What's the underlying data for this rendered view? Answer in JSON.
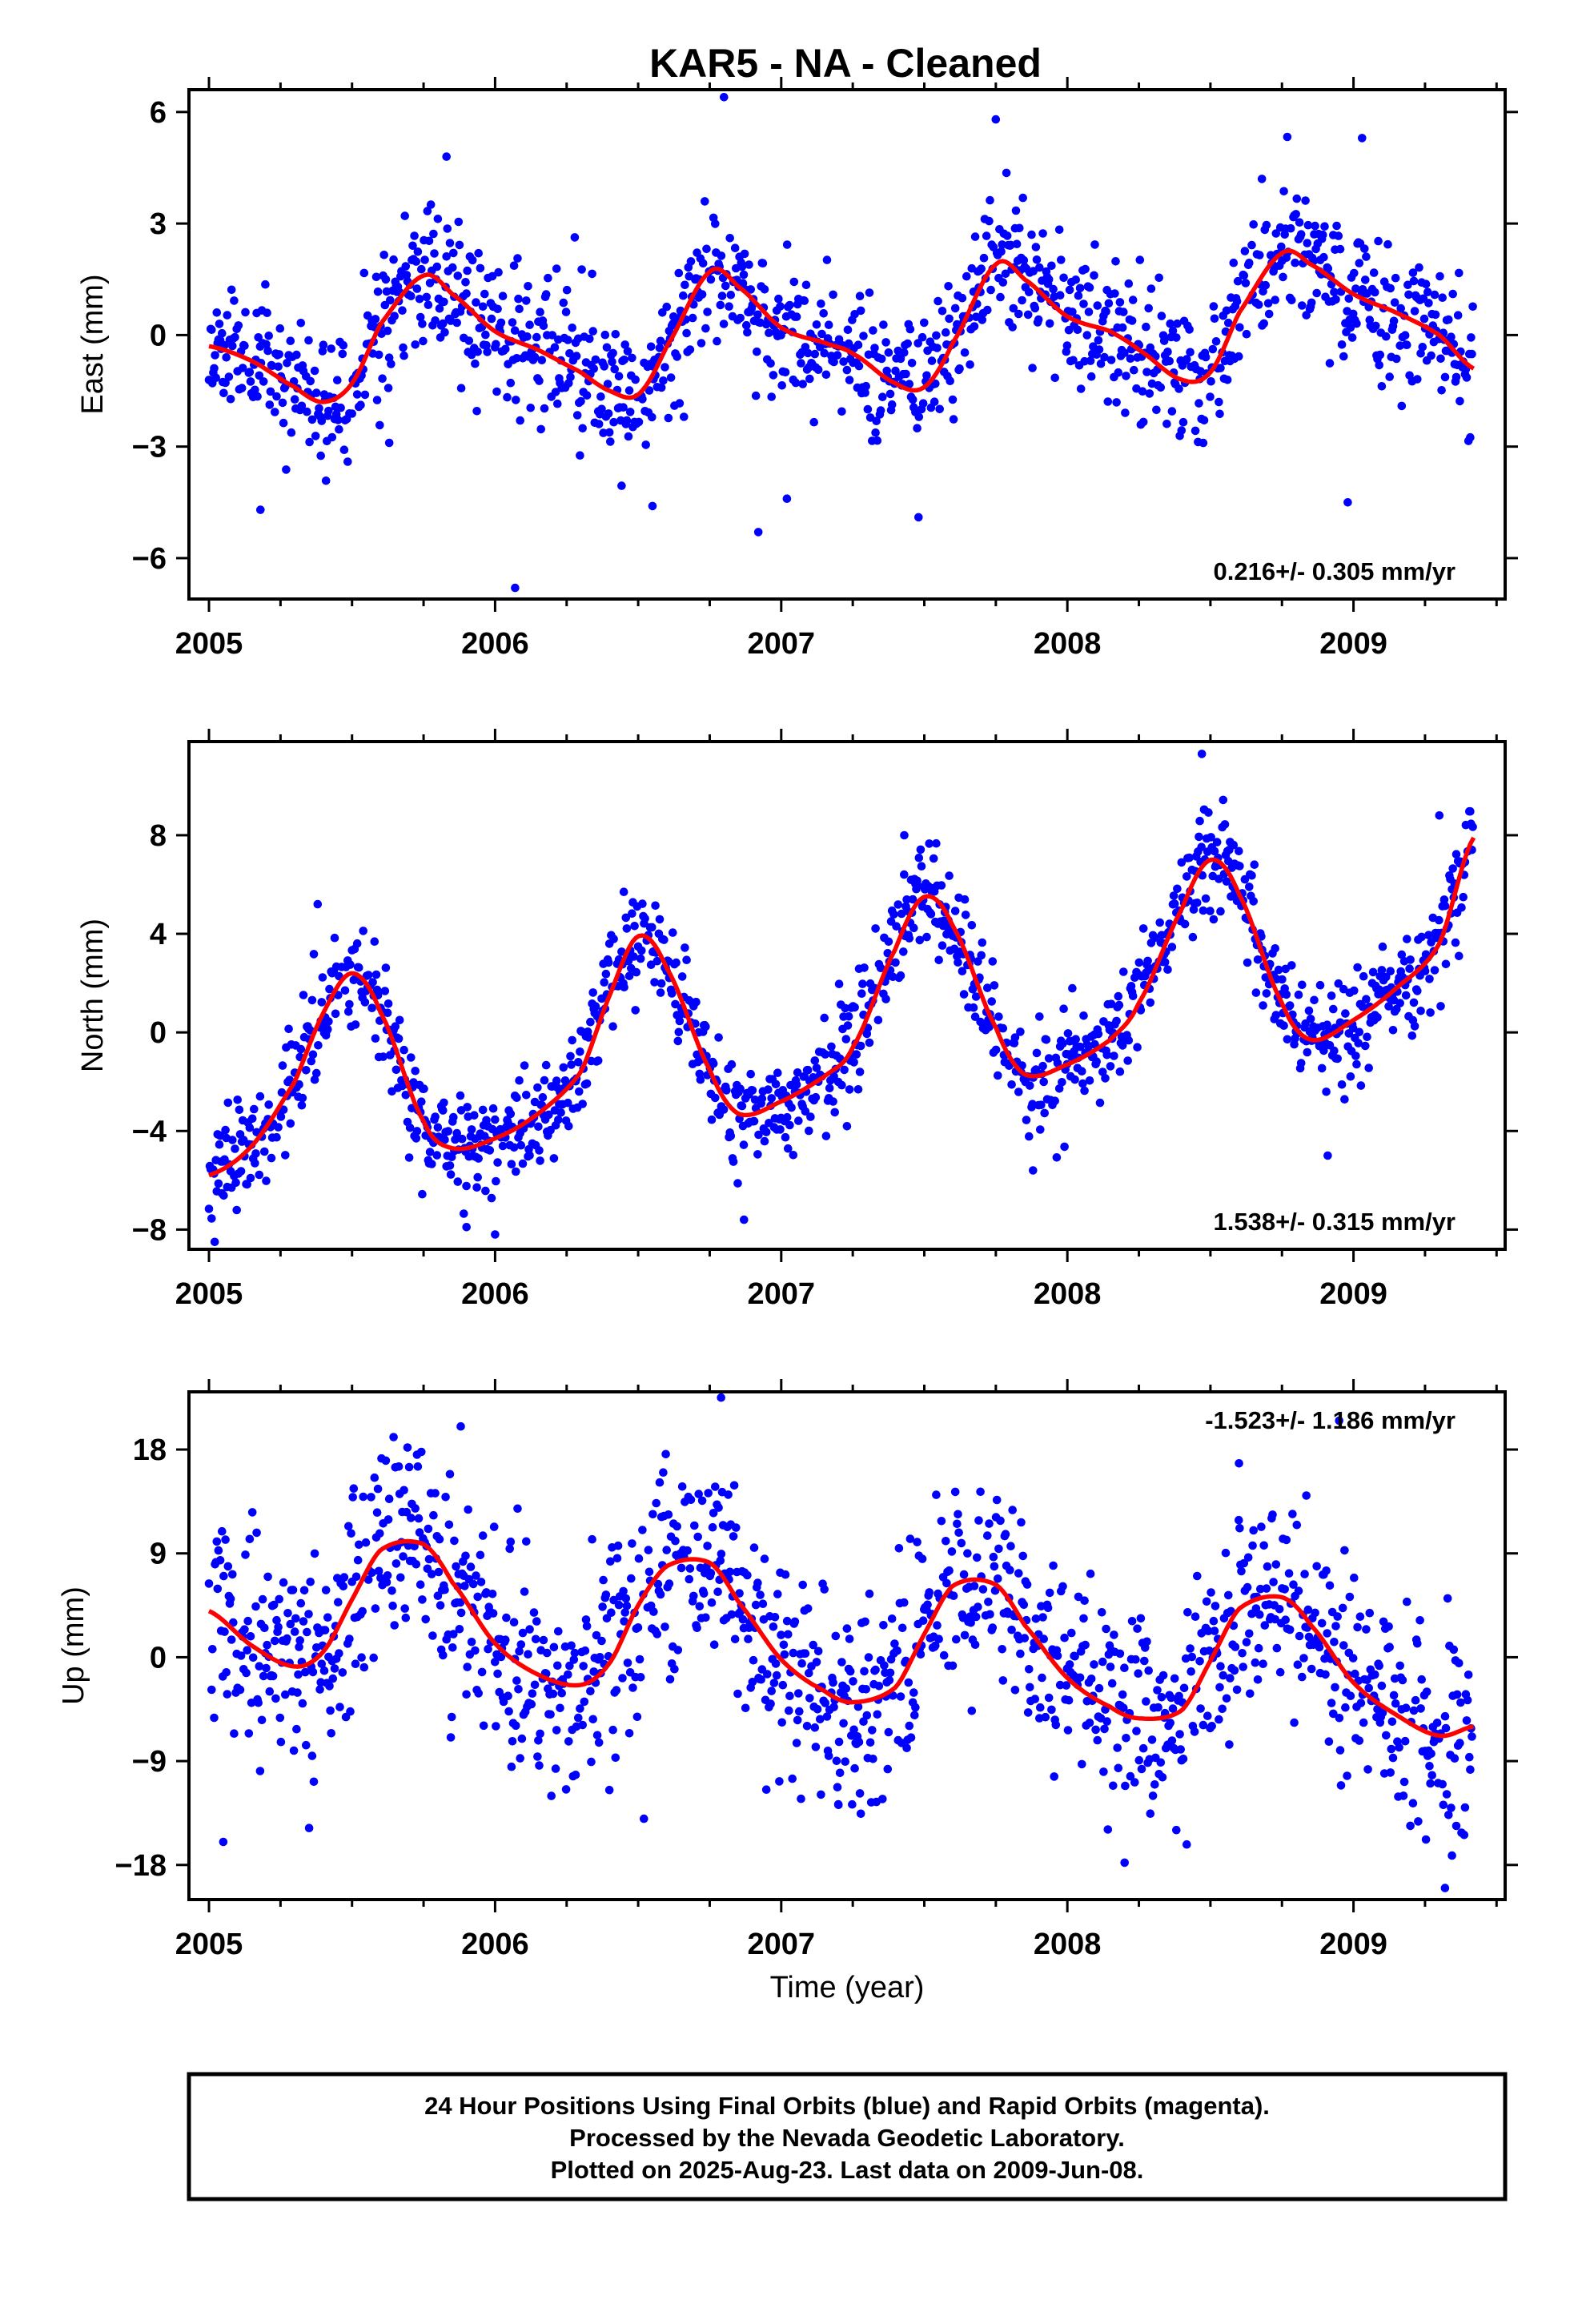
{
  "title": "KAR5  - NA - Cleaned",
  "footer": {
    "lines": [
      "24 Hour Positions Using Final Orbits (blue) and Rapid Orbits (magenta).",
      "Processed by the Nevada Geodetic Laboratory.",
      "Plotted on 2025-Aug-23. Last data on 2009-Jun-08."
    ]
  },
  "colors": {
    "points": "#0000ff",
    "fit": "#ff0000",
    "frame": "#000000"
  },
  "chart_data": [
    {
      "type": "scatter",
      "ylabel": "East (mm)",
      "xlabel": "",
      "rate_label": "0.216+/- 0.305 mm/yr",
      "rate_position": "bottom-right",
      "xlim": [
        2004.93,
        2009.53
      ],
      "ylim": [
        -7.1,
        6.6
      ],
      "yticks": [
        6,
        3,
        0,
        -3,
        -6
      ],
      "ytick_labels": [
        "6",
        "3",
        "0",
        "−3",
        "−6"
      ],
      "xticks": [
        2005,
        2006,
        2007,
        2008,
        2009
      ],
      "xtick_labels": [
        "2005",
        "2006",
        "2007",
        "2008",
        "2009"
      ],
      "grid": false,
      "fit_line": {
        "x": [
          2005.0,
          2005.15,
          2005.3,
          2005.4,
          2005.5,
          2005.6,
          2005.75,
          2005.85,
          2006.0,
          2006.15,
          2006.3,
          2006.4,
          2006.5,
          2006.6,
          2006.75,
          2006.85,
          2007.0,
          2007.15,
          2007.25,
          2007.4,
          2007.5,
          2007.6,
          2007.75,
          2007.85,
          2008.0,
          2008.15,
          2008.25,
          2008.4,
          2008.5,
          2008.6,
          2008.75,
          2008.85,
          2009.0,
          2009.15,
          2009.3,
          2009.42
        ],
        "y": [
          -0.3,
          -0.7,
          -1.4,
          -1.8,
          -1.3,
          0.3,
          1.6,
          1.1,
          0.1,
          -0.4,
          -1.0,
          -1.5,
          -1.6,
          -0.3,
          1.7,
          1.3,
          0.2,
          -0.2,
          -0.5,
          -1.3,
          -1.4,
          -0.2,
          1.9,
          1.5,
          0.5,
          0.1,
          -0.4,
          -1.2,
          -1.0,
          0.6,
          2.2,
          1.9,
          1.1,
          0.6,
          0.0,
          -0.9
        ]
      },
      "points": {
        "seed": 11,
        "noise_sd": 0.95,
        "density_per_year": 330,
        "outliers": [
          [
            2006.07,
            -6.8
          ],
          [
            2005.63,
            -2.9
          ],
          [
            2006.55,
            -4.6
          ],
          [
            2006.92,
            -5.3
          ],
          [
            2006.8,
            6.4
          ],
          [
            2007.75,
            5.8
          ],
          [
            2009.03,
            5.3
          ],
          [
            2008.68,
            4.2
          ],
          [
            2008.98,
            -4.5
          ],
          [
            2007.02,
            -4.4
          ],
          [
            2007.48,
            -4.9
          ],
          [
            2005.83,
            4.8
          ],
          [
            2005.18,
            -4.7
          ]
        ]
      }
    },
    {
      "type": "scatter",
      "ylabel": "North (mm)",
      "xlabel": "",
      "rate_label": "1.538+/- 0.315 mm/yr",
      "rate_position": "bottom-right",
      "xlim": [
        2004.93,
        2009.53
      ],
      "ylim": [
        -8.8,
        11.8
      ],
      "yticks": [
        8,
        4,
        0,
        -4,
        -8
      ],
      "ytick_labels": [
        "8",
        "4",
        "0",
        "−4",
        "−8"
      ],
      "xticks": [
        2005,
        2006,
        2007,
        2008,
        2009
      ],
      "xtick_labels": [
        "2005",
        "2006",
        "2007",
        "2008",
        "2009"
      ],
      "grid": false,
      "fit_line": {
        "x": [
          2005.0,
          2005.15,
          2005.3,
          2005.4,
          2005.5,
          2005.6,
          2005.75,
          2005.85,
          2006.0,
          2006.15,
          2006.3,
          2006.4,
          2006.5,
          2006.6,
          2006.75,
          2006.85,
          2007.0,
          2007.15,
          2007.25,
          2007.4,
          2007.5,
          2007.6,
          2007.75,
          2007.85,
          2008.0,
          2008.15,
          2008.25,
          2008.4,
          2008.5,
          2008.6,
          2008.75,
          2008.85,
          2009.0,
          2009.15,
          2009.3,
          2009.42
        ],
        "y": [
          -5.8,
          -4.6,
          -2.0,
          0.8,
          2.4,
          0.8,
          -3.6,
          -4.7,
          -4.3,
          -3.3,
          -1.6,
          1.5,
          3.9,
          2.6,
          -1.5,
          -3.3,
          -2.8,
          -1.8,
          -0.6,
          3.4,
          5.5,
          4.3,
          0.2,
          -1.7,
          -1.3,
          -0.3,
          1.2,
          5.0,
          7.0,
          5.6,
          1.2,
          -0.3,
          0.5,
          1.8,
          3.6,
          7.9
        ]
      },
      "points": {
        "seed": 23,
        "noise_sd": 1.05,
        "density_per_year": 330,
        "outliers": [
          [
            2005.02,
            -8.5
          ],
          [
            2006.0,
            -8.2
          ],
          [
            2006.87,
            -7.6
          ],
          [
            2007.88,
            -5.6
          ],
          [
            2008.47,
            11.3
          ],
          [
            2008.91,
            -5.0
          ],
          [
            2009.3,
            8.8
          ],
          [
            2005.38,
            5.2
          ],
          [
            2006.45,
            5.7
          ],
          [
            2007.43,
            8.0
          ],
          [
            2005.9,
            -7.9
          ]
        ]
      }
    },
    {
      "type": "scatter",
      "ylabel": "Up (mm)",
      "xlabel": "Time (year)",
      "rate_label": "-1.523+/- 1.186 mm/yr",
      "rate_position": "top-right",
      "xlim": [
        2004.93,
        2009.53
      ],
      "ylim": [
        -21,
        23
      ],
      "yticks": [
        18,
        9,
        0,
        -9,
        -18
      ],
      "ytick_labels": [
        "18",
        "9",
        "0",
        "−9",
        "−18"
      ],
      "xticks": [
        2005,
        2006,
        2007,
        2008,
        2009
      ],
      "xtick_labels": [
        "2005",
        "2006",
        "2007",
        "2008",
        "2009"
      ],
      "grid": false,
      "fit_line": {
        "x": [
          2005.0,
          2005.15,
          2005.3,
          2005.4,
          2005.5,
          2005.6,
          2005.75,
          2005.85,
          2006.0,
          2006.15,
          2006.3,
          2006.4,
          2006.5,
          2006.6,
          2006.75,
          2006.85,
          2007.0,
          2007.15,
          2007.25,
          2007.4,
          2007.5,
          2007.6,
          2007.75,
          2007.85,
          2008.0,
          2008.15,
          2008.25,
          2008.4,
          2008.5,
          2008.6,
          2008.75,
          2008.85,
          2009.0,
          2009.15,
          2009.3,
          2009.42
        ],
        "y": [
          4.0,
          1.0,
          -0.8,
          0.5,
          5.0,
          9.3,
          9.8,
          6.5,
          1.2,
          -1.5,
          -2.4,
          -0.5,
          4.5,
          7.9,
          8.2,
          4.8,
          -0.2,
          -2.9,
          -3.9,
          -2.6,
          2.0,
          6.2,
          6.3,
          2.8,
          -1.8,
          -4.3,
          -5.3,
          -4.6,
          -0.3,
          4.2,
          5.2,
          2.8,
          -2.2,
          -5.0,
          -6.8,
          -6.0
        ]
      },
      "points": {
        "seed": 37,
        "noise_sd": 4.4,
        "density_per_year": 330,
        "outliers": [
          [
            2006.79,
            22.5
          ],
          [
            2008.95,
            20.5
          ],
          [
            2009.32,
            -20.0
          ],
          [
            2008.2,
            -17.8
          ],
          [
            2005.05,
            -16.0
          ],
          [
            2007.2,
            -12.8
          ],
          [
            2006.52,
            -14.0
          ],
          [
            2008.6,
            16.8
          ],
          [
            2005.88,
            20.0
          ],
          [
            2005.35,
            -14.8
          ]
        ]
      }
    }
  ]
}
